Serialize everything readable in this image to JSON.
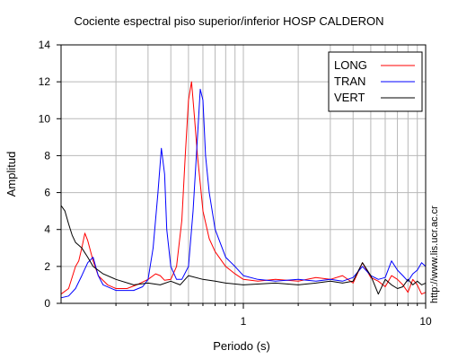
{
  "chart_data": {
    "type": "line",
    "title": "Cociente espectral piso superior/inferior  HOSP CALDERON",
    "xlabel": "Periodo (s)",
    "ylabel": "Amplitud",
    "xscale": "log",
    "xlim": [
      0.1,
      10
    ],
    "ylim": [
      0,
      14
    ],
    "x_tick_labels": [
      {
        "value": 1,
        "label": "1"
      },
      {
        "value": 10,
        "label": "10"
      }
    ],
    "x_minor_ticks": [
      0.2,
      0.3,
      0.4,
      0.5,
      0.6,
      0.7,
      0.8,
      0.9,
      2,
      3,
      4,
      5,
      6,
      7,
      8,
      9
    ],
    "y_ticks": [
      0,
      2,
      4,
      6,
      8,
      10,
      12,
      14
    ],
    "grid": true,
    "legend_position": "top-right",
    "watermark": "http://www.lis.ucr.ac.cr",
    "series": [
      {
        "name": "LONG",
        "color": "#ff0000",
        "points": [
          [
            0.1,
            0.5
          ],
          [
            0.11,
            0.8
          ],
          [
            0.12,
            2.0
          ],
          [
            0.125,
            2.3
          ],
          [
            0.13,
            3.0
          ],
          [
            0.135,
            3.8
          ],
          [
            0.14,
            3.4
          ],
          [
            0.15,
            2.3
          ],
          [
            0.16,
            1.5
          ],
          [
            0.18,
            1.0
          ],
          [
            0.2,
            0.8
          ],
          [
            0.23,
            0.8
          ],
          [
            0.26,
            1.0
          ],
          [
            0.3,
            1.3
          ],
          [
            0.33,
            1.6
          ],
          [
            0.35,
            1.5
          ],
          [
            0.37,
            1.25
          ],
          [
            0.4,
            1.3
          ],
          [
            0.43,
            2.0
          ],
          [
            0.46,
            4.5
          ],
          [
            0.48,
            8.0
          ],
          [
            0.5,
            11.0
          ],
          [
            0.52,
            12.0
          ],
          [
            0.54,
            10.0
          ],
          [
            0.56,
            8.0
          ],
          [
            0.58,
            6.5
          ],
          [
            0.6,
            5.0
          ],
          [
            0.65,
            3.5
          ],
          [
            0.7,
            2.8
          ],
          [
            0.8,
            2.0
          ],
          [
            0.9,
            1.6
          ],
          [
            1.0,
            1.3
          ],
          [
            1.2,
            1.2
          ],
          [
            1.5,
            1.3
          ],
          [
            2.0,
            1.2
          ],
          [
            2.5,
            1.4
          ],
          [
            3.0,
            1.3
          ],
          [
            3.5,
            1.5
          ],
          [
            4.0,
            1.1
          ],
          [
            4.5,
            2.2
          ],
          [
            5.0,
            1.4
          ],
          [
            5.5,
            1.2
          ],
          [
            6.0,
            0.9
          ],
          [
            6.5,
            1.5
          ],
          [
            7.0,
            1.3
          ],
          [
            7.5,
            1.0
          ],
          [
            8.0,
            0.6
          ],
          [
            8.5,
            1.3
          ],
          [
            9.0,
            1.0
          ],
          [
            9.5,
            0.5
          ],
          [
            10.0,
            0.6
          ]
        ]
      },
      {
        "name": "TRAN",
        "color": "#0000ff",
        "points": [
          [
            0.1,
            0.3
          ],
          [
            0.11,
            0.4
          ],
          [
            0.12,
            0.8
          ],
          [
            0.13,
            1.5
          ],
          [
            0.14,
            2.2
          ],
          [
            0.15,
            2.5
          ],
          [
            0.16,
            1.5
          ],
          [
            0.17,
            1.0
          ],
          [
            0.2,
            0.7
          ],
          [
            0.25,
            0.7
          ],
          [
            0.28,
            0.9
          ],
          [
            0.3,
            1.3
          ],
          [
            0.32,
            3.0
          ],
          [
            0.34,
            6.0
          ],
          [
            0.355,
            8.4
          ],
          [
            0.37,
            7.0
          ],
          [
            0.38,
            4.0
          ],
          [
            0.4,
            2.0
          ],
          [
            0.43,
            1.3
          ],
          [
            0.46,
            1.3
          ],
          [
            0.5,
            2.0
          ],
          [
            0.53,
            5.0
          ],
          [
            0.56,
            9.0
          ],
          [
            0.58,
            11.6
          ],
          [
            0.6,
            11.0
          ],
          [
            0.62,
            8.0
          ],
          [
            0.65,
            6.0
          ],
          [
            0.7,
            4.0
          ],
          [
            0.8,
            2.5
          ],
          [
            0.9,
            2.0
          ],
          [
            1.0,
            1.5
          ],
          [
            1.2,
            1.3
          ],
          [
            1.5,
            1.2
          ],
          [
            2.0,
            1.3
          ],
          [
            2.5,
            1.2
          ],
          [
            3.0,
            1.3
          ],
          [
            3.5,
            1.2
          ],
          [
            4.0,
            1.4
          ],
          [
            4.5,
            2.0
          ],
          [
            5.0,
            1.5
          ],
          [
            5.5,
            1.3
          ],
          [
            6.0,
            1.4
          ],
          [
            6.5,
            2.3
          ],
          [
            7.0,
            1.8
          ],
          [
            7.5,
            1.5
          ],
          [
            8.0,
            1.2
          ],
          [
            8.5,
            1.6
          ],
          [
            9.0,
            1.8
          ],
          [
            9.5,
            2.2
          ],
          [
            10.0,
            2.0
          ]
        ]
      },
      {
        "name": "VERT",
        "color": "#000000",
        "points": [
          [
            0.1,
            5.3
          ],
          [
            0.105,
            5.0
          ],
          [
            0.11,
            4.3
          ],
          [
            0.115,
            3.7
          ],
          [
            0.12,
            3.3
          ],
          [
            0.13,
            3.0
          ],
          [
            0.14,
            2.5
          ],
          [
            0.15,
            2.0
          ],
          [
            0.17,
            1.6
          ],
          [
            0.2,
            1.3
          ],
          [
            0.25,
            1.0
          ],
          [
            0.3,
            1.1
          ],
          [
            0.35,
            1.0
          ],
          [
            0.4,
            1.2
          ],
          [
            0.45,
            1.0
          ],
          [
            0.5,
            1.5
          ],
          [
            0.6,
            1.3
          ],
          [
            0.7,
            1.2
          ],
          [
            0.8,
            1.1
          ],
          [
            1.0,
            1.0
          ],
          [
            1.5,
            1.1
          ],
          [
            2.0,
            1.0
          ],
          [
            2.5,
            1.1
          ],
          [
            3.0,
            1.2
          ],
          [
            3.5,
            1.1
          ],
          [
            4.0,
            1.2
          ],
          [
            4.5,
            2.2
          ],
          [
            5.0,
            1.5
          ],
          [
            5.5,
            0.5
          ],
          [
            6.0,
            1.3
          ],
          [
            6.5,
            1.0
          ],
          [
            7.0,
            0.8
          ],
          [
            7.5,
            0.9
          ],
          [
            8.0,
            1.3
          ],
          [
            8.5,
            1.0
          ],
          [
            9.0,
            1.2
          ],
          [
            9.5,
            1.0
          ],
          [
            10.0,
            1.1
          ]
        ]
      }
    ]
  }
}
